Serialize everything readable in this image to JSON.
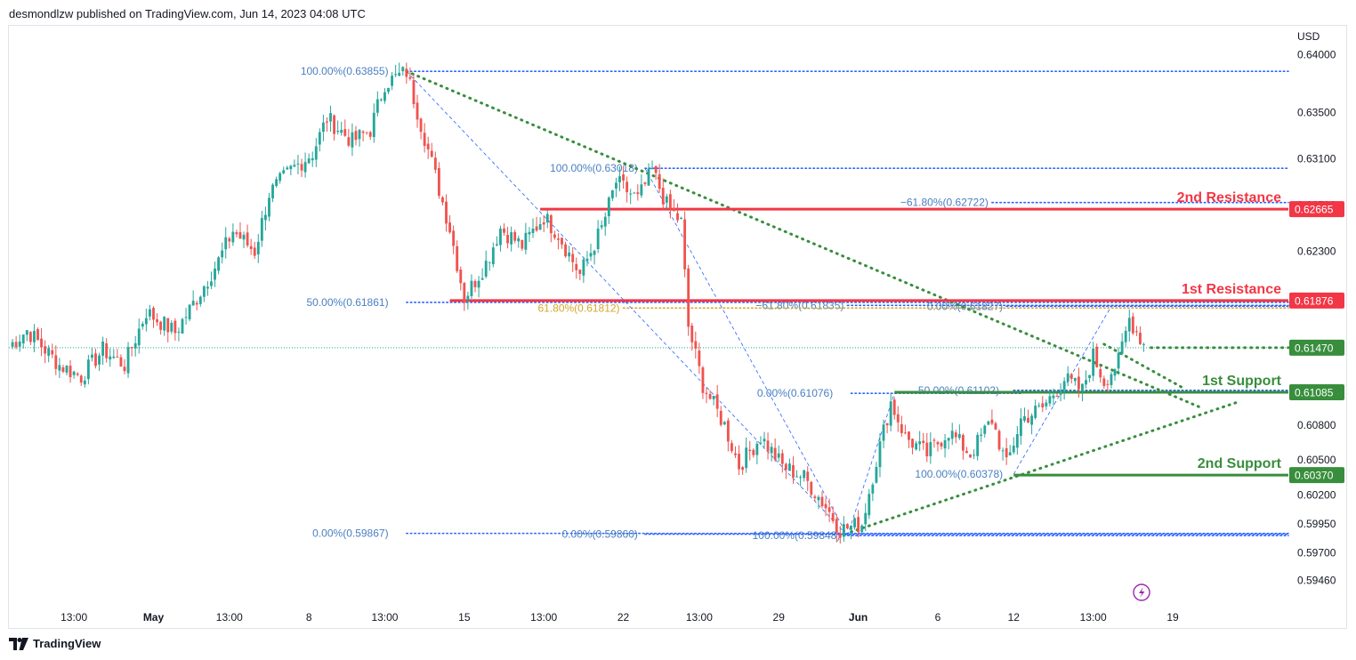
{
  "header": {
    "published": "desmondlzw published on TradingView.com, Jun 14, 2023 04:08 UTC"
  },
  "footer": {
    "brand": "TradingView"
  },
  "colors": {
    "up": "#26a69a",
    "down": "#ef5350",
    "resistance": "#f23645",
    "support": "#388e3c",
    "fib": "#2962ff",
    "fibtext": "#4a7fc1",
    "gold": "#d4a72c",
    "trend": "#388e3c"
  },
  "chart_data": {
    "type": "candlestick",
    "currency_label": "USD",
    "ylim": [
      0.5925,
      0.6424
    ],
    "y_ticks": [
      {
        "value": 0.64,
        "label": "0.64000"
      },
      {
        "value": 0.635,
        "label": "0.63500"
      },
      {
        "value": 0.631,
        "label": "0.63100"
      },
      {
        "value": 0.627,
        "label": "0.62700"
      },
      {
        "value": 0.623,
        "label": "0.62300"
      },
      {
        "value": 0.608,
        "label": "0.60800"
      },
      {
        "value": 0.605,
        "label": "0.60500"
      },
      {
        "value": 0.602,
        "label": "0.60200"
      },
      {
        "value": 0.5995,
        "label": "0.59950"
      },
      {
        "value": 0.597,
        "label": "0.59700"
      },
      {
        "value": 0.5946,
        "label": "0.59460"
      }
    ],
    "x_ticks": [
      {
        "idx": 18,
        "label": "13:00",
        "bold": false
      },
      {
        "idx": 40,
        "label": "May",
        "bold": true
      },
      {
        "idx": 61,
        "label": "13:00",
        "bold": false
      },
      {
        "idx": 83,
        "label": "8",
        "bold": false
      },
      {
        "idx": 104,
        "label": "13:00",
        "bold": false
      },
      {
        "idx": 126,
        "label": "15",
        "bold": false
      },
      {
        "idx": 148,
        "label": "13:00",
        "bold": false
      },
      {
        "idx": 170,
        "label": "22",
        "bold": false
      },
      {
        "idx": 191,
        "label": "13:00",
        "bold": false
      },
      {
        "idx": 213,
        "label": "29",
        "bold": false
      },
      {
        "idx": 235,
        "label": "Jun",
        "bold": true
      },
      {
        "idx": 257,
        "label": "6",
        "bold": false
      },
      {
        "idx": 278,
        "label": "12",
        "bold": false
      },
      {
        "idx": 300,
        "label": "13:00",
        "bold": false
      },
      {
        "idx": 322,
        "label": "19",
        "bold": false
      }
    ],
    "x_index_range": [
      0,
      354
    ],
    "key_points": [
      [
        0,
        0.6148
      ],
      [
        5,
        0.6162
      ],
      [
        14,
        0.6132
      ],
      [
        20,
        0.6122
      ],
      [
        26,
        0.6145
      ],
      [
        32,
        0.6132
      ],
      [
        38,
        0.6178
      ],
      [
        46,
        0.616
      ],
      [
        52,
        0.619
      ],
      [
        58,
        0.6222
      ],
      [
        62,
        0.6248
      ],
      [
        68,
        0.623
      ],
      [
        72,
        0.628
      ],
      [
        78,
        0.63
      ],
      [
        84,
        0.6315
      ],
      [
        88,
        0.6345
      ],
      [
        95,
        0.6325
      ],
      [
        100,
        0.6335
      ],
      [
        104,
        0.6375
      ],
      [
        110,
        0.6385
      ],
      [
        114,
        0.634
      ],
      [
        118,
        0.6295
      ],
      [
        122,
        0.625
      ],
      [
        126,
        0.619
      ],
      [
        132,
        0.622
      ],
      [
        136,
        0.625
      ],
      [
        142,
        0.6235
      ],
      [
        148,
        0.626
      ],
      [
        152,
        0.6245
      ],
      [
        158,
        0.621
      ],
      [
        164,
        0.625
      ],
      [
        168,
        0.629
      ],
      [
        174,
        0.6275
      ],
      [
        178,
        0.63
      ],
      [
        182,
        0.627
      ],
      [
        186,
        0.6255
      ],
      [
        188,
        0.6165
      ],
      [
        192,
        0.6115
      ],
      [
        198,
        0.608
      ],
      [
        202,
        0.6045
      ],
      [
        208,
        0.607
      ],
      [
        214,
        0.6045
      ],
      [
        220,
        0.6035
      ],
      [
        226,
        0.601
      ],
      [
        230,
        0.599
      ],
      [
        236,
        0.5995
      ],
      [
        240,
        0.605
      ],
      [
        244,
        0.61
      ],
      [
        248,
        0.607
      ],
      [
        254,
        0.6055
      ],
      [
        260,
        0.6075
      ],
      [
        266,
        0.6055
      ],
      [
        272,
        0.6085
      ],
      [
        276,
        0.6045
      ],
      [
        280,
        0.6085
      ],
      [
        286,
        0.6095
      ],
      [
        292,
        0.612
      ],
      [
        297,
        0.611
      ],
      [
        300,
        0.614
      ],
      [
        303,
        0.6118
      ],
      [
        307,
        0.6135
      ],
      [
        310,
        0.6172
      ],
      [
        314,
        0.615
      ]
    ],
    "current_price": 0.6147,
    "levels": [
      {
        "label": "2nd Resistance",
        "value": 0.62665,
        "price": "0.62665",
        "kind": "resistance",
        "x_from": 147
      },
      {
        "label": "1st Resistance",
        "value": 0.61876,
        "price": "0.61876",
        "kind": "resistance",
        "x_from": 122
      },
      {
        "label": "",
        "value": 0.6147,
        "price": "0.61470",
        "kind": "support-dotted",
        "x_from": 316
      },
      {
        "label": "1st Support",
        "value": 0.61085,
        "price": "0.61085",
        "kind": "support",
        "x_from": 245
      },
      {
        "label": "2nd Support",
        "value": 0.6037,
        "price": "0.60370",
        "kind": "support",
        "x_from": 278
      }
    ],
    "fib_lines": [
      {
        "text": "100.00%(0.63855)",
        "value": 0.63855,
        "x_from": 110,
        "x_to": 354,
        "label_x": 106,
        "anchor": "end",
        "color": "fibtext"
      },
      {
        "text": "100.00%(0.63018)",
        "value": 0.63018,
        "x_from": 176,
        "x_to": 354,
        "label_x": 175,
        "anchor": "end",
        "color": "fibtext"
      },
      {
        "text": "−61.80%(0.62722)",
        "value": 0.62722,
        "x_from": 272,
        "x_to": 354,
        "label_x": 272,
        "anchor": "end",
        "color": "fibtext"
      },
      {
        "text": "50.00%(0.61861)",
        "value": 0.61861,
        "x_from": 110,
        "x_to": 354,
        "label_x": 106,
        "anchor": "end",
        "color": "fibtext"
      },
      {
        "text": "−61.80%(0.61835)",
        "value": 0.61835,
        "x_from": 232,
        "x_to": 354,
        "label_x": 232,
        "anchor": "end",
        "color": "fibtext"
      },
      {
        "text": "0.00%(0.61827)",
        "value": 0.61827,
        "x_from": 276,
        "x_to": 354,
        "label_x": 276,
        "anchor": "end",
        "color": "fibtext"
      },
      {
        "text": "61.80%(0.61812)",
        "value": 0.61812,
        "x_from": 170,
        "x_to": 354,
        "label_x": 170,
        "anchor": "end",
        "color": "gold"
      },
      {
        "text": "0.00%(0.61076)",
        "value": 0.61076,
        "x_from": 233,
        "x_to": 280,
        "label_x": 229,
        "anchor": "end",
        "color": "fibtext"
      },
      {
        "text": "50.00%(0.61102)",
        "value": 0.61102,
        "x_from": 278,
        "x_to": 354,
        "label_x": 275,
        "anchor": "end",
        "color": "fibtext"
      },
      {
        "text": "100.00%(0.60378)",
        "value": 0.60378,
        "x_from": 278,
        "x_to": 278,
        "label_x": 276,
        "anchor": "end",
        "color": "fibtext"
      },
      {
        "text": "100.00%(0.59848)",
        "value": 0.59848,
        "x_from": 231,
        "x_to": 354,
        "label_x": 231,
        "anchor": "end",
        "color": "fibtext"
      },
      {
        "text": "0.00%(0.59867)",
        "value": 0.59867,
        "x_from": 110,
        "x_to": 354,
        "label_x": 106,
        "anchor": "end",
        "color": "fibtext"
      },
      {
        "text": "0.00%(0.59860)",
        "value": 0.5986,
        "x_from": 176,
        "x_to": 354,
        "label_x": 175,
        "anchor": "end",
        "color": "fibtext"
      }
    ],
    "fib_diagonals": [
      [
        [
          110,
          0.63855
        ],
        [
          232,
          0.59848
        ]
      ],
      [
        [
          176,
          0.63018
        ],
        [
          232,
          0.59848
        ]
      ],
      [
        [
          232,
          0.59848
        ],
        [
          245,
          0.61076
        ]
      ],
      [
        [
          278,
          0.60378
        ],
        [
          305,
          0.61827
        ]
      ]
    ],
    "trend_lines": [
      [
        [
          110,
          0.63855
        ],
        [
          330,
          0.6095
        ]
      ],
      [
        [
          233,
          0.5988
        ],
        [
          340,
          0.61
        ]
      ],
      [
        [
          303,
          0.615
        ],
        [
          325,
          0.6112
        ]
      ]
    ]
  }
}
